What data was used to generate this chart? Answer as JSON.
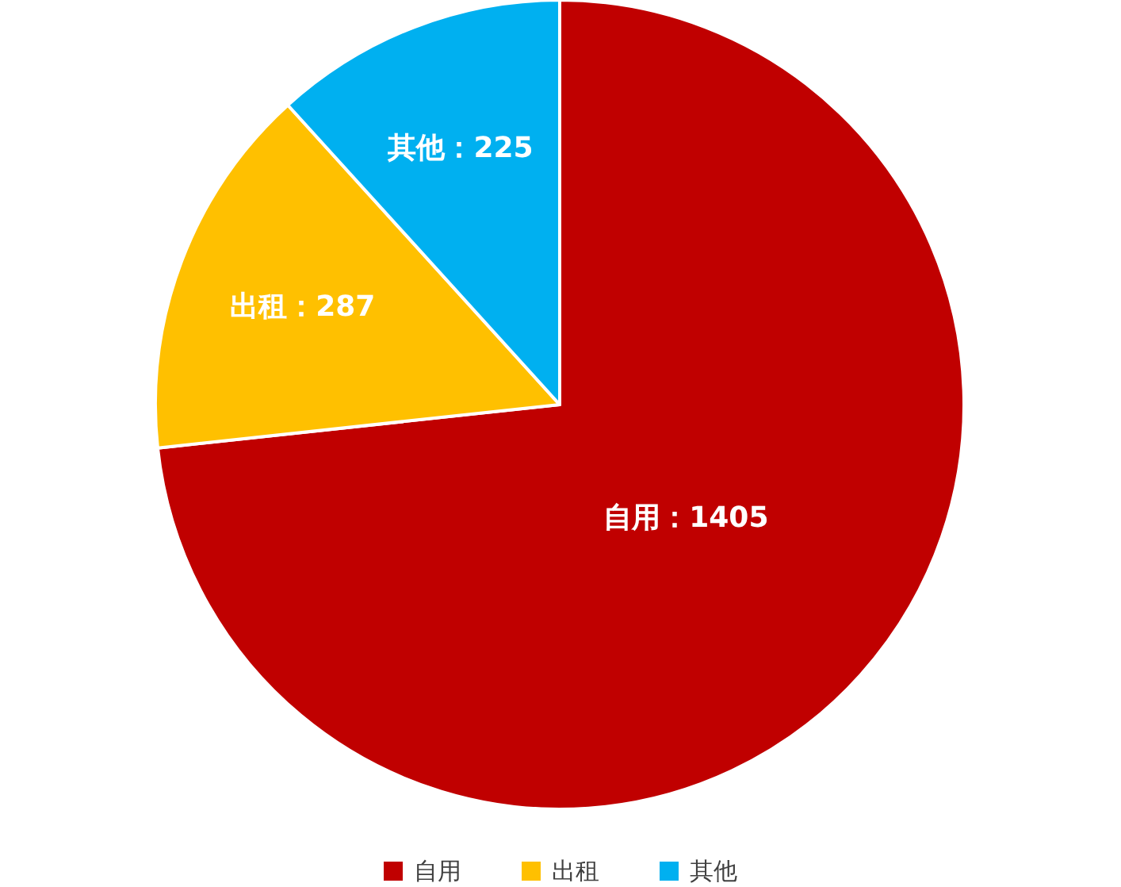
{
  "chart_data": {
    "type": "pie",
    "categories": [
      "自用",
      "出租",
      "其他"
    ],
    "values": [
      1405,
      287,
      225
    ],
    "colors": [
      "#c00000",
      "#ffc000",
      "#00b0f0"
    ],
    "value_labels": [
      "自用：1405",
      "出租：287",
      "其他：225"
    ],
    "legend": "bottom"
  }
}
